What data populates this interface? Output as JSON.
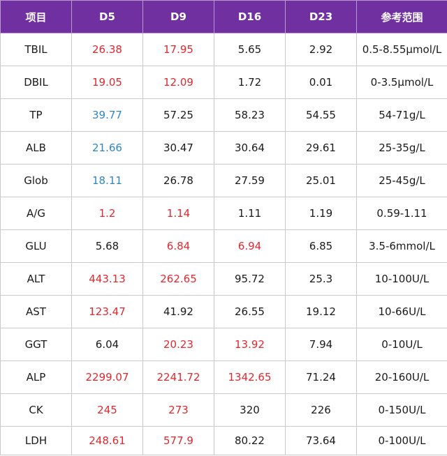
{
  "colors": {
    "header_bg": "#7030a0",
    "header_text": "#ffffff",
    "high": "#e0282e",
    "low": "#2e86c1",
    "normal": "#1a1a1a",
    "border": "#c9c9c9"
  },
  "table": {
    "headers": [
      "项目",
      "D5",
      "D9",
      "D16",
      "D23",
      "参考范围"
    ],
    "rows": [
      {
        "item": "TBIL",
        "values": [
          "26.38",
          "17.95",
          "5.65",
          "2.92"
        ],
        "status": [
          "high",
          "high",
          "normal",
          "normal"
        ],
        "ref": "0.5-8.55μmol/L"
      },
      {
        "item": "DBIL",
        "values": [
          "19.05",
          "12.09",
          "1.72",
          "0.01"
        ],
        "status": [
          "high",
          "high",
          "normal",
          "normal"
        ],
        "ref": "0-3.5μmol/L"
      },
      {
        "item": "TP",
        "values": [
          "39.77",
          "57.25",
          "58.23",
          "54.55"
        ],
        "status": [
          "low",
          "normal",
          "normal",
          "normal"
        ],
        "ref": "54-71g/L"
      },
      {
        "item": "ALB",
        "values": [
          "21.66",
          "30.47",
          "30.64",
          "29.61"
        ],
        "status": [
          "low",
          "normal",
          "normal",
          "normal"
        ],
        "ref": "25-35g/L"
      },
      {
        "item": "Glob",
        "values": [
          "18.11",
          "26.78",
          "27.59",
          "25.01"
        ],
        "status": [
          "low",
          "normal",
          "normal",
          "normal"
        ],
        "ref": "25-45g/L"
      },
      {
        "item": "A/G",
        "values": [
          "1.2",
          "1.14",
          "1.11",
          "1.19"
        ],
        "status": [
          "high",
          "high",
          "normal",
          "normal"
        ],
        "ref": "0.59-1.11"
      },
      {
        "item": "GLU",
        "values": [
          "5.68",
          "6.84",
          "6.94",
          "6.85"
        ],
        "status": [
          "normal",
          "high",
          "high",
          "normal"
        ],
        "ref": "3.5-6mmol/L"
      },
      {
        "item": "ALT",
        "values": [
          "443.13",
          "262.65",
          "95.72",
          "25.3"
        ],
        "status": [
          "high",
          "high",
          "normal",
          "normal"
        ],
        "ref": "10-100U/L"
      },
      {
        "item": "AST",
        "values": [
          "123.47",
          "41.92",
          "26.55",
          "19.12"
        ],
        "status": [
          "high",
          "normal",
          "normal",
          "normal"
        ],
        "ref": "10-66U/L"
      },
      {
        "item": "GGT",
        "values": [
          "6.04",
          "20.23",
          "13.92",
          "7.94"
        ],
        "status": [
          "normal",
          "high",
          "high",
          "normal"
        ],
        "ref": "0-10U/L"
      },
      {
        "item": "ALP",
        "values": [
          "2299.07",
          "2241.72",
          "1342.65",
          "71.24"
        ],
        "status": [
          "high",
          "high",
          "high",
          "normal"
        ],
        "ref": "20-160U/L"
      },
      {
        "item": "CK",
        "values": [
          "245",
          "273",
          "320",
          "226"
        ],
        "status": [
          "high",
          "high",
          "normal",
          "normal"
        ],
        "ref": "0-150U/L"
      },
      {
        "item": "LDH",
        "values": [
          "248.61",
          "577.9",
          "80.22",
          "73.64"
        ],
        "status": [
          "high",
          "high",
          "normal",
          "normal"
        ],
        "ref": "0-100U/L"
      }
    ]
  }
}
